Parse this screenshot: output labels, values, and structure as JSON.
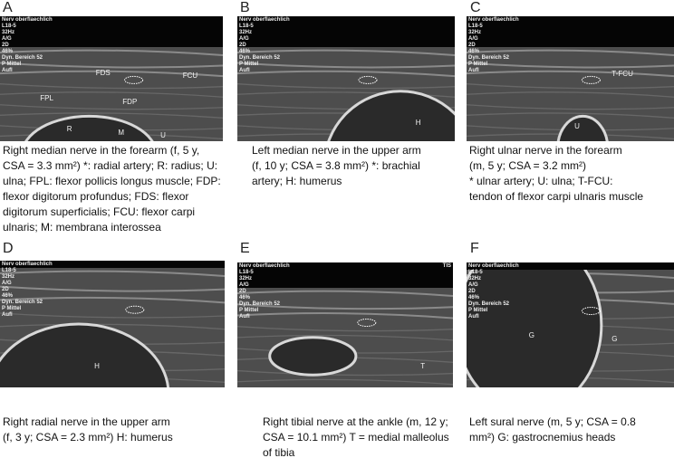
{
  "panels": [
    {
      "letter": "A",
      "overlays": [
        "Nerv oberflaechlich",
        "L18-5",
        "32Hz",
        "A/G",
        "2D",
        "46%",
        "Dyn. Bereich 52",
        "P Mittel",
        "Aufl"
      ],
      "annotations": [
        "FDS",
        "FCU",
        "FPL",
        "FDP",
        "R",
        "M",
        "U"
      ],
      "caption": [
        "Right median nerve in the forearm (f, 5 y,",
        "CSA = 3.3 mm²) *: radial artery; R: radius; U:",
        "ulna; FPL: flexor pollicis longus muscle; FDP:",
        "flexor digitorum profundus; FDS: flexor",
        "digitorum superficialis; FCU: flexor carpi",
        "ulnaris; M: membrana interossea"
      ]
    },
    {
      "letter": "B",
      "overlays": [
        "Nerv oberflaechlich",
        "L18-5",
        "32Hz",
        "A/G",
        "2D",
        "46%",
        "Dyn. Bereich 52",
        "P Mittel",
        "Aufl"
      ],
      "annotations": [
        "H"
      ],
      "caption": [
        "Left median nerve in the upper arm",
        "(f, 10 y; CSA = 3.8 mm²) *: brachial",
        "artery; H: humerus"
      ]
    },
    {
      "letter": "C",
      "overlays": [
        "Nerv oberflaechlich",
        "L18-5",
        "32Hz",
        "A/G",
        "2D",
        "46%",
        "Dyn. Bereich 52",
        "P Mittel",
        "Aufl"
      ],
      "annotations": [
        "T-FCU",
        "U"
      ],
      "caption": [
        "Right ulnar nerve in the forearm",
        "(m, 5 y; CSA = 3.2 mm²)",
        "* ulnar artery; U: ulna; T-FCU:",
        "tendon of flexor carpi ulnaris muscle"
      ]
    },
    {
      "letter": "D",
      "overlays": [
        "Nerv oberflaechlich",
        "L18-5",
        "32Hz",
        "A/G",
        "2D",
        "46%",
        "Dyn. Bereich 52",
        "P Mittel",
        "Aufl"
      ],
      "annotations": [
        "H"
      ],
      "caption": [
        "Right radial nerve in the upper arm",
        "(f, 3 y; CSA = 2.3 mm²) H: humerus"
      ]
    },
    {
      "letter": "E",
      "overlays": [
        "Nerv oberflaechlich",
        "L18-5",
        "32Hz",
        "A/G",
        "2D",
        "46%",
        "Dyn. Bereich 52",
        "P Mittel",
        "Aufl",
        "TIS"
      ],
      "annotations": [
        "T"
      ],
      "caption": [
        "Right tibial nerve at the ankle (m, 12 y;",
        "CSA = 10.1 mm²) T = medial malleolus",
        "of tibia"
      ]
    },
    {
      "letter": "F",
      "overlays": [
        "Nerv oberflaechlich",
        "L18-5",
        "32Hz",
        "A/G",
        "2D",
        "46%",
        "Dyn. Bereich 52",
        "P Mittel",
        "Aufl"
      ],
      "annotations": [
        "G",
        "G"
      ],
      "caption": [
        "Left sural nerve (m, 5 y; CSA = 0.8",
        "mm²) G: gastrocnemius heads"
      ]
    }
  ]
}
